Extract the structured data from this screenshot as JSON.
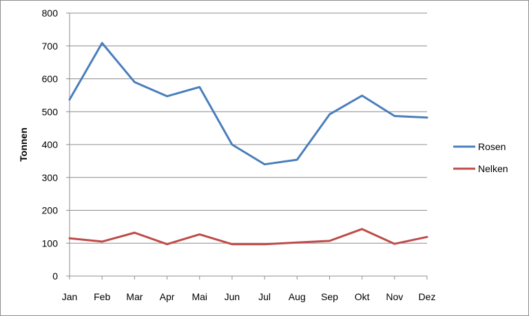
{
  "chart_data": {
    "type": "line",
    "title": "",
    "xlabel": "",
    "ylabel": "Tonnen",
    "categories": [
      "Jan",
      "Feb",
      "Mar",
      "Apr",
      "Mai",
      "Jun",
      "Jul",
      "Aug",
      "Sep",
      "Okt",
      "Nov",
      "Dez"
    ],
    "ylim": [
      0,
      800
    ],
    "yticks": [
      "0",
      "100",
      "200",
      "300",
      "400",
      "500",
      "600",
      "700",
      "800"
    ],
    "grid": true,
    "legend_position": "right",
    "series": [
      {
        "name": "Rosen",
        "color": "#4a7ebb",
        "values": [
          537,
          709,
          590,
          547,
          575,
          400,
          340,
          354,
          492,
          549,
          487,
          482
        ]
      },
      {
        "name": "Nelken",
        "color": "#be4b48",
        "values": [
          115,
          105,
          132,
          97,
          127,
          97,
          97,
          102,
          107,
          143,
          98,
          119
        ]
      }
    ]
  }
}
